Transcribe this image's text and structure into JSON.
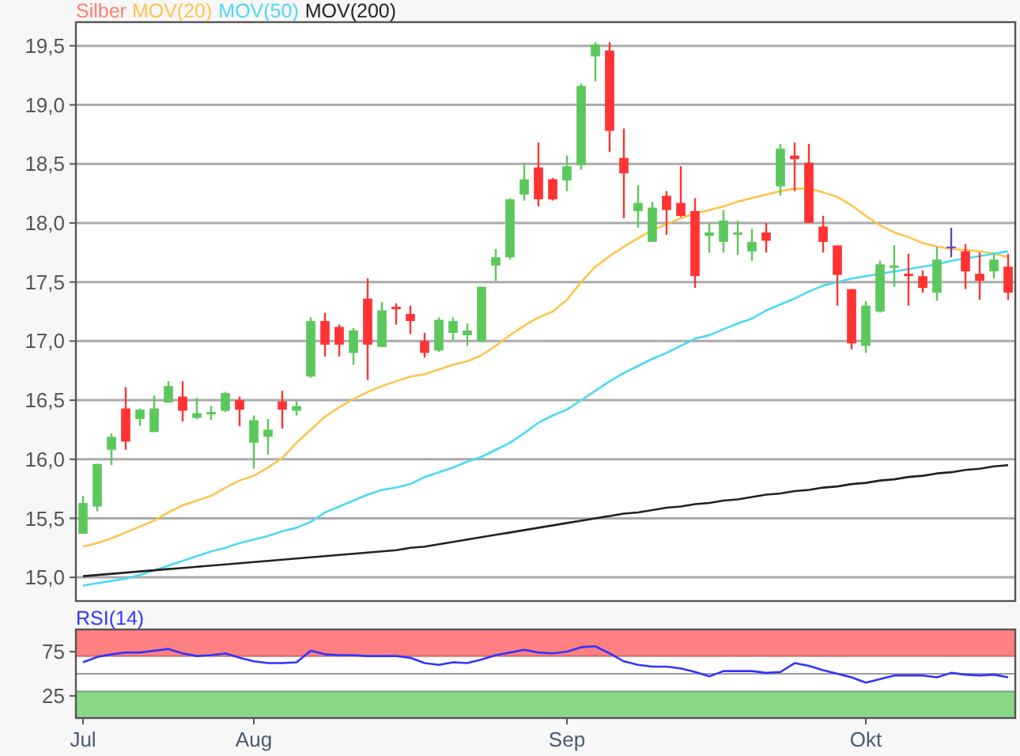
{
  "chart_data": [
    {
      "type": "candlestick",
      "categories": [
        null,
        null,
        null,
        null,
        null,
        null,
        null,
        null,
        null,
        null,
        null,
        null,
        null,
        null,
        null,
        null,
        null,
        null,
        null,
        null,
        null,
        null,
        null,
        null,
        null,
        null,
        null,
        null,
        null,
        null,
        null,
        null,
        null,
        null,
        null,
        null,
        null,
        null,
        null,
        null,
        null,
        null,
        null,
        null,
        null,
        null,
        null,
        null,
        null,
        null,
        null,
        null,
        null,
        null,
        null,
        null,
        null,
        null,
        null,
        null,
        null,
        null,
        null,
        null,
        null,
        null
      ],
      "title": "Silber",
      "colors": [
        "#5cc85c",
        "#5cc85c",
        "#5cc85c",
        "#ff3333",
        "#5cc85c",
        "#5cc85c",
        "#5cc85c",
        "#ff3333",
        "#5cc85c",
        "#5cc85c",
        "#5cc85c",
        "#ff3333",
        "#5cc85c",
        "#5cc85c",
        "#ff3333",
        "#5cc85c",
        "#5cc85c",
        "#ff3333",
        "#ff3333",
        "#5cc85c",
        "#ff3333",
        "#5cc85c",
        "#ff3333",
        "#ff3333",
        "#ff3333",
        "#5cc85c",
        "#5cc85c",
        "#5cc85c",
        "#5cc85c",
        "#5cc85c",
        "#5cc85c",
        "#5cc85c",
        "#ff3333",
        "#ff3333",
        "#5cc85c",
        "#5cc85c",
        "#5cc85c",
        "#ff3333",
        "#ff3333",
        "#5cc85c",
        "#5cc85c",
        "#ff3333",
        "#ff3333",
        "#ff3333",
        "#5cc85c",
        "#5cc85c",
        "#5cc85c",
        "#5cc85c",
        "#ff3333",
        "#5cc85c",
        "#ff3333",
        "#ff3333",
        "#ff3333",
        "#ff3333",
        "#ff3333",
        "#5cc85c",
        "#5cc85c",
        "#5cc85c",
        "#ff3333",
        "#ff3333",
        "#5cc85c",
        "#6a3fd0",
        "#ff3333",
        "#ff3333",
        "#5cc85c",
        "#ff3333"
      ],
      "ohlc": [
        [
          15.37,
          15.69,
          15.37,
          15.63
        ],
        [
          15.6,
          15.96,
          15.56,
          15.96
        ],
        [
          16.08,
          16.22,
          15.95,
          16.19
        ],
        [
          16.43,
          16.61,
          16.08,
          16.15
        ],
        [
          16.34,
          16.43,
          16.28,
          16.42
        ],
        [
          16.23,
          16.54,
          16.23,
          16.43
        ],
        [
          16.48,
          16.66,
          16.48,
          16.62
        ],
        [
          16.53,
          16.66,
          16.32,
          16.41
        ],
        [
          16.35,
          16.52,
          16.34,
          16.39
        ],
        [
          16.38,
          16.45,
          16.33,
          16.4
        ],
        [
          16.41,
          16.57,
          16.4,
          16.56
        ],
        [
          16.5,
          16.53,
          16.28,
          16.42
        ],
        [
          16.14,
          16.37,
          15.92,
          16.33
        ],
        [
          16.19,
          16.34,
          16.04,
          16.25
        ],
        [
          16.49,
          16.58,
          16.26,
          16.42
        ],
        [
          16.41,
          16.49,
          16.37,
          16.45
        ],
        [
          16.7,
          17.2,
          16.69,
          17.17
        ],
        [
          17.17,
          17.24,
          16.87,
          16.97
        ],
        [
          17.12,
          17.14,
          16.87,
          16.97
        ],
        [
          16.9,
          17.11,
          16.8,
          17.09
        ],
        [
          17.36,
          17.53,
          16.67,
          16.97
        ],
        [
          16.95,
          17.33,
          16.95,
          17.26
        ],
        [
          17.29,
          17.32,
          17.14,
          17.27
        ],
        [
          17.23,
          17.3,
          17.06,
          17.17
        ],
        [
          17.0,
          17.07,
          16.86,
          16.9
        ],
        [
          16.92,
          17.2,
          16.91,
          17.18
        ],
        [
          17.07,
          17.2,
          17.01,
          17.17
        ],
        [
          17.05,
          17.15,
          16.96,
          17.09
        ],
        [
          17.0,
          17.46,
          16.99,
          17.46
        ],
        [
          17.64,
          17.78,
          17.51,
          17.71
        ],
        [
          17.71,
          18.21,
          17.69,
          18.2
        ],
        [
          18.24,
          18.51,
          18.19,
          18.37
        ],
        [
          18.47,
          18.68,
          18.14,
          18.2
        ],
        [
          18.37,
          18.38,
          18.19,
          18.2
        ],
        [
          18.36,
          18.57,
          18.27,
          18.48
        ],
        [
          18.49,
          19.18,
          18.45,
          19.16
        ],
        [
          19.41,
          19.53,
          19.2,
          19.51
        ],
        [
          19.46,
          19.53,
          18.6,
          18.78
        ],
        [
          18.55,
          18.8,
          18.04,
          18.42
        ],
        [
          18.1,
          18.32,
          17.96,
          18.17
        ],
        [
          17.84,
          18.18,
          17.84,
          18.13
        ],
        [
          18.23,
          18.27,
          17.9,
          18.11
        ],
        [
          18.17,
          18.48,
          18.05,
          18.06
        ],
        [
          18.1,
          18.21,
          17.45,
          17.55
        ],
        [
          17.89,
          18.0,
          17.75,
          17.92
        ],
        [
          17.84,
          18.11,
          17.75,
          18.02
        ],
        [
          17.9,
          18.02,
          17.73,
          17.92
        ],
        [
          17.76,
          17.95,
          17.68,
          17.84
        ],
        [
          17.92,
          18.0,
          17.75,
          17.85
        ],
        [
          18.31,
          18.67,
          18.23,
          18.63
        ],
        [
          18.57,
          18.68,
          18.27,
          18.54
        ],
        [
          18.51,
          18.67,
          18.0,
          18.0
        ],
        [
          17.97,
          18.06,
          17.75,
          17.84
        ],
        [
          17.81,
          17.81,
          17.3,
          17.56
        ],
        [
          17.44,
          17.44,
          16.93,
          16.98
        ],
        [
          16.96,
          17.34,
          16.9,
          17.3
        ],
        [
          17.25,
          17.68,
          17.24,
          17.65
        ],
        [
          17.62,
          17.81,
          17.46,
          17.64
        ],
        [
          17.57,
          17.74,
          17.3,
          17.55
        ],
        [
          17.55,
          17.6,
          17.41,
          17.45
        ],
        [
          17.41,
          17.8,
          17.34,
          17.69
        ],
        [
          17.8,
          17.96,
          17.71,
          17.8
        ],
        [
          17.76,
          17.82,
          17.44,
          17.59
        ],
        [
          17.57,
          17.75,
          17.35,
          17.51
        ],
        [
          17.59,
          17.74,
          17.53,
          17.69
        ],
        [
          17.63,
          17.74,
          17.35,
          17.41
        ]
      ],
      "series": [
        {
          "name": "MOV(20)",
          "type": "line",
          "color": "#ffc34d",
          "values": [
            15.26,
            15.29,
            15.33,
            15.38,
            15.43,
            15.48,
            15.55,
            15.61,
            15.65,
            15.69,
            15.76,
            15.82,
            15.86,
            15.93,
            16.01,
            16.14,
            16.25,
            16.36,
            16.44,
            16.51,
            16.57,
            16.62,
            16.66,
            16.7,
            16.72,
            16.76,
            16.8,
            16.83,
            16.88,
            16.96,
            17.05,
            17.13,
            17.2,
            17.25,
            17.35,
            17.5,
            17.63,
            17.72,
            17.8,
            17.87,
            17.94,
            17.99,
            18.04,
            18.08,
            18.11,
            18.14,
            18.18,
            18.21,
            18.24,
            18.27,
            18.29,
            18.29,
            18.26,
            18.22,
            18.15,
            18.06,
            17.98,
            17.92,
            17.88,
            17.83,
            17.8,
            17.78,
            17.77,
            17.76,
            17.74,
            17.71
          ]
        },
        {
          "name": "MOV(50)",
          "type": "line",
          "color": "#4dd8f5",
          "values": [
            14.93,
            14.95,
            14.97,
            14.99,
            15.02,
            15.06,
            15.1,
            15.14,
            15.18,
            15.22,
            15.25,
            15.29,
            15.32,
            15.35,
            15.39,
            15.42,
            15.47,
            15.55,
            15.6,
            15.65,
            15.7,
            15.74,
            15.76,
            15.79,
            15.85,
            15.89,
            15.93,
            15.98,
            16.02,
            16.08,
            16.14,
            16.22,
            16.31,
            16.37,
            16.42,
            16.5,
            16.58,
            16.66,
            16.73,
            16.79,
            16.85,
            16.9,
            16.96,
            17.02,
            17.05,
            17.1,
            17.15,
            17.19,
            17.26,
            17.31,
            17.36,
            17.42,
            17.47,
            17.5,
            17.53,
            17.55,
            17.57,
            17.59,
            17.61,
            17.63,
            17.65,
            17.68,
            17.7,
            17.72,
            17.74,
            17.76
          ]
        },
        {
          "name": "MOV(200)",
          "type": "line",
          "color": "#222222",
          "values": [
            15.01,
            15.02,
            15.03,
            15.04,
            15.05,
            15.06,
            15.07,
            15.08,
            15.09,
            15.1,
            15.11,
            15.12,
            15.13,
            15.14,
            15.15,
            15.16,
            15.17,
            15.18,
            15.19,
            15.2,
            15.21,
            15.22,
            15.23,
            15.25,
            15.26,
            15.28,
            15.3,
            15.32,
            15.34,
            15.36,
            15.38,
            15.4,
            15.42,
            15.44,
            15.46,
            15.48,
            15.5,
            15.52,
            15.54,
            15.55,
            15.57,
            15.59,
            15.6,
            15.62,
            15.63,
            15.65,
            15.66,
            15.68,
            15.7,
            15.71,
            15.73,
            15.74,
            15.76,
            15.77,
            15.79,
            15.8,
            15.82,
            15.83,
            15.85,
            15.86,
            15.88,
            15.89,
            15.91,
            15.92,
            15.94,
            15.95
          ]
        }
      ],
      "ylim": [
        14.8,
        19.7
      ],
      "yticks": [
        {
          "value": 15,
          "label": "15,0"
        },
        {
          "value": 15.5,
          "label": "15,5"
        },
        {
          "value": 16,
          "label": "16,0"
        },
        {
          "value": 16.5,
          "label": "16,5"
        },
        {
          "value": 17,
          "label": "17,0"
        },
        {
          "value": 17.5,
          "label": "17,5"
        },
        {
          "value": 18,
          "label": "18,0"
        },
        {
          "value": 18.5,
          "label": "18,5"
        },
        {
          "value": 19,
          "label": "19,0"
        },
        {
          "value": 19.5,
          "label": "19,5"
        }
      ],
      "grid": "y",
      "legend": "top left",
      "tick_labels": "y"
    },
    {
      "type": "line",
      "categories": [
        "Jul",
        null,
        null,
        null,
        null,
        null,
        null,
        null,
        null,
        null,
        null,
        null,
        "Aug",
        null,
        null,
        null,
        null,
        null,
        null,
        null,
        null,
        null,
        null,
        null,
        null,
        null,
        null,
        null,
        null,
        null,
        null,
        null,
        null,
        null,
        "Sep",
        null,
        null,
        null,
        null,
        null,
        null,
        null,
        null,
        null,
        null,
        null,
        null,
        null,
        null,
        null,
        null,
        null,
        null,
        null,
        null,
        "Okt",
        null,
        null,
        null,
        null,
        null,
        null,
        null,
        null,
        null,
        null
      ],
      "series": [
        {
          "name": "RSI(14)",
          "color": "#3333ff",
          "values": [
            63,
            69,
            72,
            74,
            74,
            76,
            78,
            73,
            70,
            71,
            73,
            68,
            64,
            62,
            62,
            63,
            76,
            72,
            71,
            71,
            70,
            70,
            70,
            68,
            62,
            60,
            63,
            62,
            66,
            71,
            74,
            77,
            74,
            73,
            75,
            80,
            81,
            73,
            64,
            60,
            58,
            58,
            56,
            52,
            47,
            53,
            53,
            53,
            51,
            52,
            62,
            59,
            54,
            50,
            46,
            40,
            44,
            48,
            48,
            48,
            46,
            51,
            49,
            48,
            49,
            46
          ]
        }
      ],
      "ylim": [
        0,
        100
      ],
      "yticks": [
        25,
        75
      ],
      "bands": [
        {
          "axis": "y",
          "from": 70,
          "to": 100,
          "color": "#ff8080"
        },
        {
          "axis": "y",
          "from": 0,
          "to": 30,
          "color": "#88d888"
        }
      ],
      "ref_lines": [
        {
          "axis": "y",
          "value": 50,
          "color": "#999999"
        }
      ],
      "legend": "top left"
    }
  ]
}
